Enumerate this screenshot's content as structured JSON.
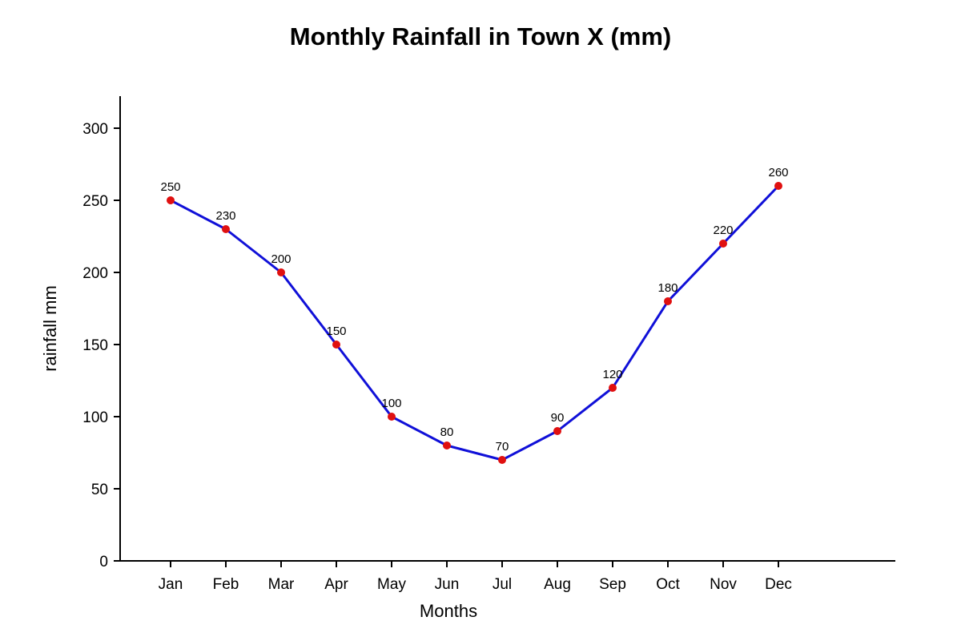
{
  "chart_data": {
    "type": "line",
    "title": "Monthly Rainfall in Town X (mm)",
    "xlabel": "Months",
    "ylabel": "rainfall mm",
    "categories": [
      "Jan",
      "Feb",
      "Mar",
      "Apr",
      "May",
      "Jun",
      "Jul",
      "Aug",
      "Sep",
      "Oct",
      "Nov",
      "Dec"
    ],
    "series": [
      {
        "values": [
          250,
          230,
          200,
          150,
          100,
          80,
          70,
          90,
          120,
          180,
          220,
          260
        ],
        "line_color": "#1010d8",
        "marker_color": "#e01010"
      }
    ],
    "ylim": [
      0,
      320
    ],
    "yticks": [
      0,
      50,
      100,
      150,
      200,
      250,
      300
    ],
    "data_labels": true,
    "grid": false,
    "legend": "none"
  }
}
